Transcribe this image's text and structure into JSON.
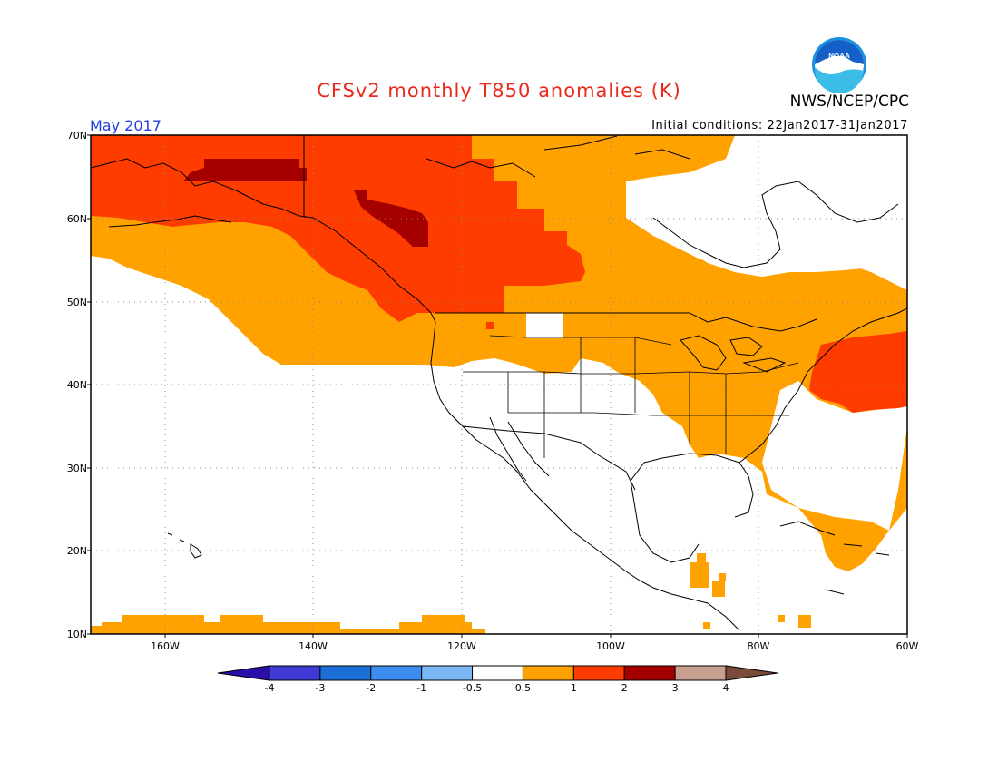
{
  "title": "CFSv2 monthly T850 anomalies (K)",
  "agency": "NWS/NCEP/CPC",
  "logo_text": "NOAA",
  "period": "May 2017",
  "initial_conditions": "Initial conditions: 22Jan2017-31Jan2017",
  "lat_labels": [
    "70N",
    "60N",
    "50N",
    "40N",
    "30N",
    "20N",
    "10N"
  ],
  "lon_labels": [
    "160W",
    "140W",
    "120W",
    "100W",
    "80W",
    "60W"
  ],
  "colorbar": {
    "labels": [
      "-4",
      "-3",
      "-2",
      "-1",
      "-0.5",
      "0.5",
      "1",
      "2",
      "3",
      "4"
    ],
    "colors": [
      "#2a0fa8",
      "#3f3ad6",
      "#1c6fd6",
      "#3b8ef0",
      "#7ab8f4",
      "#ffffff",
      "#ffa200",
      "#ff3c00",
      "#a50000",
      "#c8a090",
      "#7a4a3a"
    ]
  },
  "colors": {
    "orange": "#ffa200",
    "red": "#ff3c00",
    "darkred": "#a50000",
    "title": "#e8291c",
    "month": "#1f3fe0"
  }
}
